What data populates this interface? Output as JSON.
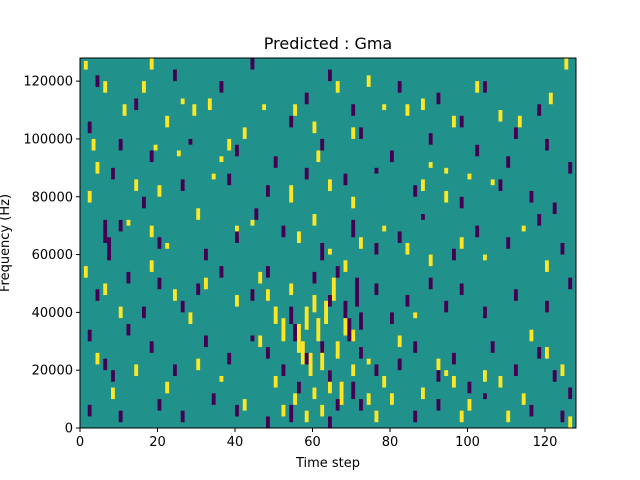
{
  "chart_data": {
    "type": "heatmap",
    "title": "Predicted : Gma",
    "xlabel": "Time step",
    "ylabel": "Frequency (Hz)",
    "xlim": [
      0,
      128
    ],
    "ylim": [
      0,
      128000
    ],
    "x_ticks": [
      0,
      20,
      40,
      60,
      80,
      100,
      120
    ],
    "y_ticks": [
      0,
      20000,
      40000,
      60000,
      80000,
      100000,
      120000
    ],
    "x_tick_labels": [
      "0",
      "20",
      "40",
      "60",
      "80",
      "100",
      "120"
    ],
    "y_tick_labels": [
      "0",
      "20000",
      "40000",
      "60000",
      "80000",
      "100000",
      "120000"
    ],
    "n_time_steps": 128,
    "n_frequency_bins": 128,
    "frequency_bin_hz": 1000,
    "grid": false,
    "colors": {
      "background": "#21918c",
      "high": "#fde725",
      "low": "#440154"
    },
    "description_of_cells": "Background cells are mid value; listed cells are high (yellow) or low (dark purple). Each cell is [time_step_start, time_step_end, freq_hz_start, freq_hz_end].",
    "high_cells": [
      [
        1,
        2,
        124000,
        127000
      ],
      [
        6,
        7,
        116000,
        120000
      ],
      [
        11,
        12,
        108000,
        112000
      ],
      [
        18,
        19,
        124000,
        128000
      ],
      [
        16,
        17,
        116000,
        120000
      ],
      [
        22,
        23,
        104000,
        108000
      ],
      [
        26,
        27,
        112000,
        114000
      ],
      [
        29,
        30,
        108000,
        112000
      ],
      [
        33,
        34,
        110000,
        114000
      ],
      [
        38,
        39,
        96000,
        100000
      ],
      [
        42,
        43,
        100000,
        104000
      ],
      [
        47,
        48,
        110000,
        112000
      ],
      [
        55,
        56,
        108000,
        112000
      ],
      [
        60,
        61,
        102000,
        106000
      ],
      [
        66,
        67,
        116000,
        120000
      ],
      [
        70,
        71,
        100000,
        104000
      ],
      [
        74,
        75,
        118000,
        122000
      ],
      [
        78,
        79,
        110000,
        112000
      ],
      [
        84,
        85,
        108000,
        112000
      ],
      [
        88,
        89,
        110000,
        114000
      ],
      [
        96,
        97,
        104000,
        108000
      ],
      [
        102,
        103,
        116000,
        120000
      ],
      [
        108,
        109,
        106000,
        110000
      ],
      [
        113,
        114,
        104000,
        108000
      ],
      [
        121,
        122,
        112000,
        116000
      ],
      [
        125,
        126,
        124000,
        128000
      ],
      [
        3,
        4,
        96000,
        100000
      ],
      [
        19,
        20,
        96000,
        98000
      ],
      [
        25,
        26,
        94000,
        96000
      ],
      [
        36,
        37,
        92000,
        94000
      ],
      [
        61,
        62,
        92000,
        96000
      ],
      [
        90,
        91,
        90000,
        92000
      ],
      [
        94,
        95,
        88000,
        90000
      ],
      [
        100,
        101,
        86000,
        88000
      ],
      [
        4,
        5,
        88000,
        92000
      ],
      [
        14,
        15,
        82000,
        86000
      ],
      [
        20,
        21,
        80000,
        84000
      ],
      [
        34,
        35,
        86000,
        88000
      ],
      [
        54,
        55,
        78000,
        84000
      ],
      [
        64,
        65,
        82000,
        86000
      ],
      [
        70,
        71,
        76000,
        80000
      ],
      [
        88,
        89,
        82000,
        86000
      ],
      [
        94,
        95,
        78000,
        82000
      ],
      [
        106,
        107,
        84000,
        86000
      ],
      [
        2,
        3,
        78000,
        82000
      ],
      [
        12,
        13,
        70000,
        72000
      ],
      [
        18,
        19,
        66000,
        70000
      ],
      [
        22,
        23,
        62000,
        64000
      ],
      [
        30,
        31,
        72000,
        76000
      ],
      [
        40,
        41,
        66000,
        70000
      ],
      [
        44,
        45,
        70000,
        72000
      ],
      [
        56,
        57,
        64000,
        68000
      ],
      [
        60,
        61,
        70000,
        74000
      ],
      [
        64,
        65,
        60000,
        62000
      ],
      [
        68,
        69,
        54000,
        58000
      ],
      [
        72,
        73,
        62000,
        66000
      ],
      [
        78,
        79,
        68000,
        70000
      ],
      [
        84,
        85,
        60000,
        64000
      ],
      [
        90,
        91,
        56000,
        60000
      ],
      [
        98,
        99,
        62000,
        66000
      ],
      [
        104,
        105,
        58000,
        60000
      ],
      [
        114,
        115,
        68000,
        70000
      ],
      [
        120,
        121,
        54000,
        58000
      ],
      [
        1,
        2,
        52000,
        56000
      ],
      [
        6,
        7,
        46000,
        50000
      ],
      [
        10,
        11,
        38000,
        42000
      ],
      [
        18,
        19,
        54000,
        58000
      ],
      [
        24,
        25,
        44000,
        48000
      ],
      [
        28,
        29,
        36000,
        40000
      ],
      [
        32,
        33,
        48000,
        52000
      ],
      [
        40,
        41,
        42000,
        46000
      ],
      [
        46,
        47,
        50000,
        54000
      ],
      [
        48,
        49,
        44000,
        48000
      ],
      [
        50,
        51,
        36000,
        42000
      ],
      [
        52,
        53,
        30000,
        38000
      ],
      [
        54,
        55,
        46000,
        50000
      ],
      [
        56,
        57,
        26000,
        36000
      ],
      [
        57,
        58,
        22000,
        30000
      ],
      [
        58,
        59,
        34000,
        42000
      ],
      [
        59,
        60,
        18000,
        26000
      ],
      [
        60,
        61,
        40000,
        46000
      ],
      [
        61,
        62,
        30000,
        38000
      ],
      [
        62,
        63,
        20000,
        28000
      ],
      [
        63,
        64,
        36000,
        44000
      ],
      [
        64,
        65,
        12000,
        20000
      ],
      [
        65,
        66,
        44000,
        52000
      ],
      [
        66,
        67,
        24000,
        30000
      ],
      [
        67,
        68,
        8000,
        16000
      ],
      [
        68,
        69,
        32000,
        40000
      ],
      [
        70,
        71,
        18000,
        22000
      ],
      [
        74,
        75,
        8000,
        12000
      ],
      [
        76,
        77,
        2000,
        6000
      ],
      [
        78,
        79,
        14000,
        18000
      ],
      [
        82,
        83,
        28000,
        32000
      ],
      [
        86,
        87,
        38000,
        40000
      ],
      [
        92,
        93,
        20000,
        24000
      ],
      [
        96,
        97,
        14000,
        18000
      ],
      [
        100,
        101,
        6000,
        10000
      ],
      [
        104,
        105,
        16000,
        20000
      ],
      [
        110,
        111,
        2000,
        6000
      ],
      [
        116,
        117,
        30000,
        34000
      ],
      [
        120,
        121,
        24000,
        28000
      ],
      [
        124,
        125,
        18000,
        22000
      ],
      [
        4,
        5,
        22000,
        26000
      ],
      [
        8,
        9,
        10000,
        14000
      ],
      [
        14,
        15,
        18000,
        22000
      ],
      [
        22,
        23,
        12000,
        16000
      ],
      [
        30,
        31,
        20000,
        24000
      ],
      [
        36,
        37,
        16000,
        18000
      ],
      [
        42,
        43,
        6000,
        10000
      ],
      [
        46,
        47,
        28000,
        32000
      ],
      [
        50,
        51,
        14000,
        18000
      ],
      [
        52,
        53,
        4000,
        8000
      ],
      [
        55,
        56,
        8000,
        12000
      ],
      [
        58,
        59,
        2000,
        6000
      ],
      [
        60,
        61,
        10000,
        14000
      ],
      [
        62,
        63,
        4000,
        8000
      ],
      [
        70,
        71,
        30000,
        34000
      ],
      [
        74,
        75,
        22000,
        24000
      ],
      [
        80,
        81,
        8000,
        12000
      ],
      [
        88,
        89,
        10000,
        14000
      ],
      [
        94,
        95,
        18000,
        20000
      ],
      [
        98,
        99,
        2000,
        6000
      ],
      [
        108,
        109,
        14000,
        18000
      ],
      [
        114,
        115,
        8000,
        12000
      ],
      [
        126,
        127,
        0,
        4000
      ]
    ],
    "low_cells": [
      [
        4,
        5,
        118000,
        122000
      ],
      [
        14,
        15,
        110000,
        114000
      ],
      [
        24,
        25,
        120000,
        124000
      ],
      [
        36,
        37,
        116000,
        120000
      ],
      [
        44,
        45,
        124000,
        128000
      ],
      [
        54,
        55,
        104000,
        108000
      ],
      [
        58,
        59,
        112000,
        116000
      ],
      [
        64,
        65,
        120000,
        124000
      ],
      [
        70,
        71,
        108000,
        112000
      ],
      [
        82,
        83,
        116000,
        120000
      ],
      [
        92,
        93,
        112000,
        116000
      ],
      [
        98,
        99,
        104000,
        108000
      ],
      [
        104,
        105,
        116000,
        120000
      ],
      [
        112,
        113,
        100000,
        104000
      ],
      [
        118,
        119,
        108000,
        112000
      ],
      [
        2,
        3,
        102000,
        106000
      ],
      [
        10,
        11,
        96000,
        100000
      ],
      [
        18,
        19,
        92000,
        96000
      ],
      [
        28,
        29,
        98000,
        100000
      ],
      [
        40,
        41,
        94000,
        98000
      ],
      [
        50,
        51,
        90000,
        94000
      ],
      [
        62,
        63,
        96000,
        100000
      ],
      [
        72,
        73,
        100000,
        104000
      ],
      [
        80,
        81,
        92000,
        96000
      ],
      [
        90,
        91,
        98000,
        102000
      ],
      [
        102,
        103,
        94000,
        98000
      ],
      [
        110,
        111,
        90000,
        94000
      ],
      [
        120,
        121,
        96000,
        100000
      ],
      [
        126,
        127,
        88000,
        92000
      ],
      [
        8,
        9,
        86000,
        90000
      ],
      [
        16,
        17,
        76000,
        80000
      ],
      [
        26,
        27,
        82000,
        86000
      ],
      [
        38,
        39,
        84000,
        88000
      ],
      [
        48,
        49,
        80000,
        84000
      ],
      [
        58,
        59,
        86000,
        90000
      ],
      [
        68,
        69,
        84000,
        88000
      ],
      [
        76,
        77,
        88000,
        90000
      ],
      [
        86,
        87,
        80000,
        84000
      ],
      [
        98,
        99,
        76000,
        80000
      ],
      [
        108,
        109,
        82000,
        86000
      ],
      [
        116,
        117,
        78000,
        82000
      ],
      [
        122,
        123,
        74000,
        78000
      ],
      [
        6,
        7,
        64000,
        72000
      ],
      [
        7,
        8,
        58000,
        66000
      ],
      [
        10,
        11,
        68000,
        72000
      ],
      [
        20,
        21,
        62000,
        66000
      ],
      [
        32,
        33,
        58000,
        62000
      ],
      [
        40,
        41,
        64000,
        68000
      ],
      [
        45,
        46,
        72000,
        76000
      ],
      [
        52,
        53,
        66000,
        70000
      ],
      [
        62,
        63,
        58000,
        64000
      ],
      [
        70,
        71,
        66000,
        72000
      ],
      [
        76,
        77,
        60000,
        64000
      ],
      [
        82,
        83,
        64000,
        68000
      ],
      [
        88,
        89,
        72000,
        74000
      ],
      [
        96,
        97,
        58000,
        62000
      ],
      [
        102,
        103,
        66000,
        70000
      ],
      [
        110,
        111,
        62000,
        66000
      ],
      [
        118,
        119,
        70000,
        74000
      ],
      [
        124,
        125,
        60000,
        64000
      ],
      [
        4,
        5,
        44000,
        48000
      ],
      [
        12,
        13,
        50000,
        54000
      ],
      [
        16,
        17,
        38000,
        42000
      ],
      [
        20,
        21,
        48000,
        52000
      ],
      [
        26,
        27,
        40000,
        44000
      ],
      [
        30,
        31,
        46000,
        50000
      ],
      [
        36,
        37,
        52000,
        56000
      ],
      [
        44,
        45,
        44000,
        48000
      ],
      [
        48,
        49,
        52000,
        56000
      ],
      [
        54,
        55,
        36000,
        42000
      ],
      [
        55,
        56,
        30000,
        36000
      ],
      [
        60,
        61,
        50000,
        54000
      ],
      [
        64,
        65,
        42000,
        46000
      ],
      [
        66,
        67,
        52000,
        56000
      ],
      [
        68,
        69,
        38000,
        44000
      ],
      [
        69,
        70,
        30000,
        38000
      ],
      [
        71,
        72,
        42000,
        52000
      ],
      [
        72,
        73,
        34000,
        40000
      ],
      [
        76,
        77,
        46000,
        50000
      ],
      [
        80,
        81,
        36000,
        40000
      ],
      [
        84,
        85,
        42000,
        46000
      ],
      [
        90,
        91,
        48000,
        52000
      ],
      [
        94,
        95,
        40000,
        44000
      ],
      [
        98,
        99,
        46000,
        50000
      ],
      [
        104,
        105,
        38000,
        42000
      ],
      [
        112,
        113,
        44000,
        48000
      ],
      [
        120,
        121,
        40000,
        44000
      ],
      [
        126,
        127,
        48000,
        52000
      ],
      [
        2,
        3,
        30000,
        34000
      ],
      [
        6,
        7,
        20000,
        24000
      ],
      [
        8,
        9,
        16000,
        20000
      ],
      [
        12,
        13,
        32000,
        36000
      ],
      [
        18,
        19,
        26000,
        30000
      ],
      [
        24,
        25,
        18000,
        22000
      ],
      [
        32,
        33,
        28000,
        32000
      ],
      [
        38,
        39,
        22000,
        26000
      ],
      [
        44,
        45,
        30000,
        32000
      ],
      [
        48,
        49,
        24000,
        28000
      ],
      [
        52,
        53,
        18000,
        22000
      ],
      [
        56,
        57,
        12000,
        16000
      ],
      [
        58,
        59,
        22000,
        26000
      ],
      [
        62,
        63,
        26000,
        30000
      ],
      [
        64,
        65,
        16000,
        20000
      ],
      [
        66,
        67,
        6000,
        10000
      ],
      [
        70,
        71,
        10000,
        16000
      ],
      [
        72,
        73,
        24000,
        28000
      ],
      [
        76,
        77,
        18000,
        22000
      ],
      [
        82,
        83,
        20000,
        24000
      ],
      [
        86,
        87,
        26000,
        30000
      ],
      [
        92,
        93,
        16000,
        20000
      ],
      [
        96,
        97,
        22000,
        26000
      ],
      [
        100,
        101,
        12000,
        16000
      ],
      [
        106,
        107,
        26000,
        30000
      ],
      [
        112,
        113,
        18000,
        22000
      ],
      [
        118,
        119,
        24000,
        28000
      ],
      [
        122,
        123,
        16000,
        20000
      ],
      [
        126,
        127,
        10000,
        14000
      ],
      [
        2,
        3,
        4000,
        8000
      ],
      [
        10,
        11,
        2000,
        6000
      ],
      [
        20,
        21,
        6000,
        10000
      ],
      [
        26,
        27,
        2000,
        6000
      ],
      [
        34,
        35,
        8000,
        12000
      ],
      [
        40,
        41,
        4000,
        8000
      ],
      [
        48,
        49,
        0,
        4000
      ],
      [
        54,
        55,
        2000,
        8000
      ],
      [
        64,
        65,
        0,
        4000
      ],
      [
        72,
        73,
        6000,
        10000
      ],
      [
        86,
        87,
        2000,
        6000
      ],
      [
        92,
        93,
        6000,
        10000
      ],
      [
        104,
        105,
        10000,
        12000
      ],
      [
        116,
        117,
        4000,
        8000
      ],
      [
        124,
        125,
        2000,
        6000
      ]
    ]
  }
}
